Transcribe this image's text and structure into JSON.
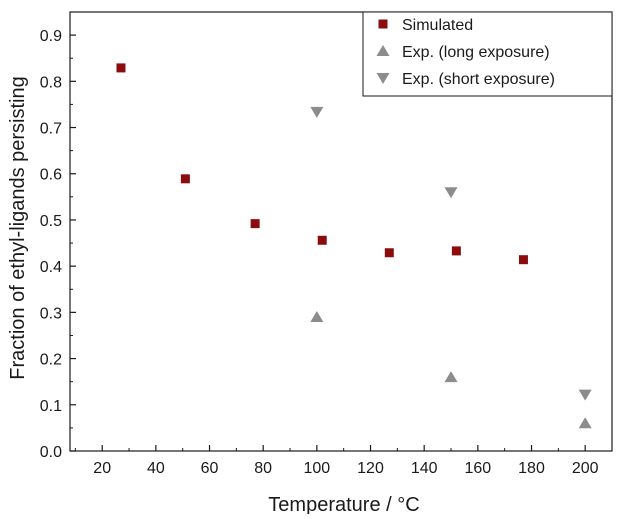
{
  "chart_data": {
    "type": "scatter",
    "title": "",
    "xlabel": "Temperature / °C",
    "ylabel": "Fraction of ethyl-ligands persisting",
    "xlim": [
      8,
      210
    ],
    "ylim": [
      0.0,
      0.95
    ],
    "xticks": [
      20,
      40,
      60,
      80,
      100,
      120,
      140,
      160,
      180,
      200
    ],
    "yticks": [
      0.0,
      0.1,
      0.2,
      0.3,
      0.4,
      0.5,
      0.6,
      0.7,
      0.8,
      0.9
    ],
    "xtick_labels": [
      "20",
      "40",
      "60",
      "80",
      "100",
      "120",
      "140",
      "160",
      "180",
      "200"
    ],
    "ytick_labels": [
      "0.0",
      "0.1",
      "0.2",
      "0.3",
      "0.4",
      "0.5",
      "0.6",
      "0.7",
      "0.8",
      "0.9"
    ],
    "grid": false,
    "legend_position": "top-right",
    "series": [
      {
        "name": "Simulated",
        "marker": "square",
        "color": "#8b0c0c",
        "x": [
          27,
          51,
          77,
          102,
          127,
          152,
          177
        ],
        "y": [
          0.829,
          0.589,
          0.492,
          0.456,
          0.429,
          0.433,
          0.414
        ]
      },
      {
        "name": "Exp. (long exposure)",
        "marker": "triangle-up",
        "color": "#8c8c8c",
        "x": [
          100,
          150,
          200
        ],
        "y": [
          0.29,
          0.16,
          0.06
        ]
      },
      {
        "name": "Exp. (short exposure)",
        "marker": "triangle-down",
        "color": "#8c8c8c",
        "x": [
          100,
          150,
          200
        ],
        "y": [
          0.734,
          0.56,
          0.122
        ]
      }
    ]
  }
}
